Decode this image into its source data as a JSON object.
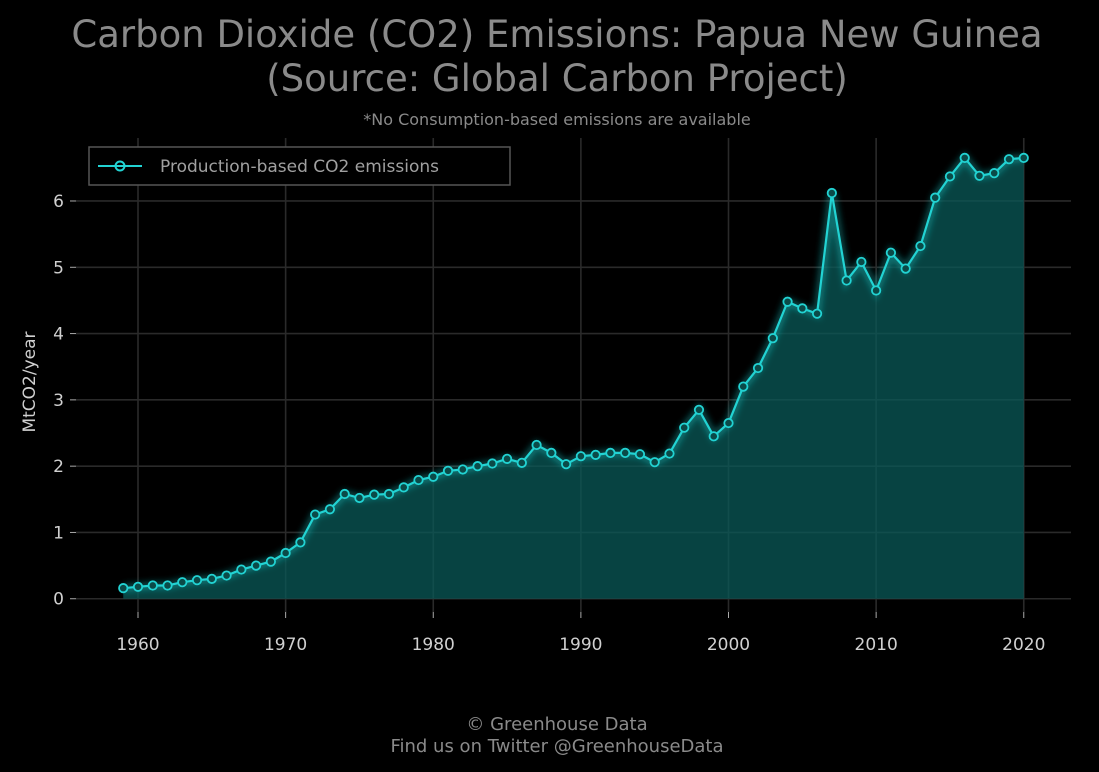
{
  "chart_data": {
    "type": "area",
    "title_line1": "Carbon Dioxide (CO2) Emissions: Papua New Guinea",
    "title_line2": "(Source: Global Carbon Project)",
    "subtitle": "*No Consumption-based emissions are available",
    "xlabel": "",
    "ylabel": "MtCO2/year",
    "xlim": [
      1955.8,
      2023.2
    ],
    "ylim": [
      -0.2,
      6.95
    ],
    "xticks": [
      1960,
      1970,
      1980,
      1990,
      2000,
      2010,
      2020
    ],
    "xtick_labels": [
      "1960",
      "1970",
      "1980",
      "1990",
      "2000",
      "2010",
      "2020"
    ],
    "yticks": [
      0,
      1,
      2,
      3,
      4,
      5,
      6
    ],
    "ytick_labels": [
      "0",
      "1",
      "2",
      "3",
      "4",
      "5",
      "6"
    ],
    "grid": true,
    "legend_position": "top-left",
    "series": [
      {
        "name": "Production-based CO2 emissions",
        "color": "#22d3d3",
        "fill_color": "#0a5a58",
        "x": [
          1959,
          1960,
          1961,
          1962,
          1963,
          1964,
          1965,
          1966,
          1967,
          1968,
          1969,
          1970,
          1971,
          1972,
          1973,
          1974,
          1975,
          1976,
          1977,
          1978,
          1979,
          1980,
          1981,
          1982,
          1983,
          1984,
          1985,
          1986,
          1987,
          1988,
          1989,
          1990,
          1991,
          1992,
          1993,
          1994,
          1995,
          1996,
          1997,
          1998,
          1999,
          2000,
          2001,
          2002,
          2003,
          2004,
          2005,
          2006,
          2007,
          2008,
          2009,
          2010,
          2011,
          2012,
          2013,
          2014,
          2015,
          2016,
          2017,
          2018,
          2019,
          2020
        ],
        "values": [
          0.16,
          0.18,
          0.2,
          0.2,
          0.25,
          0.28,
          0.3,
          0.35,
          0.44,
          0.5,
          0.56,
          0.69,
          0.85,
          1.27,
          1.35,
          1.58,
          1.52,
          1.57,
          1.58,
          1.68,
          1.79,
          1.84,
          1.93,
          1.95,
          2.0,
          2.04,
          2.11,
          2.05,
          2.32,
          2.2,
          2.03,
          2.15,
          2.17,
          2.2,
          2.2,
          2.18,
          2.06,
          2.19,
          2.58,
          2.85,
          2.45,
          2.65,
          3.2,
          3.48,
          3.93,
          4.48,
          4.38,
          4.3,
          6.12,
          4.8,
          5.08,
          4.65,
          5.22,
          4.98,
          5.32,
          6.05,
          6.37,
          6.65,
          6.38,
          6.42,
          6.63,
          6.65
        ]
      }
    ]
  },
  "footer": {
    "line1": "© Greenhouse Data",
    "line2": "Find us on Twitter @GreenhouseData"
  }
}
